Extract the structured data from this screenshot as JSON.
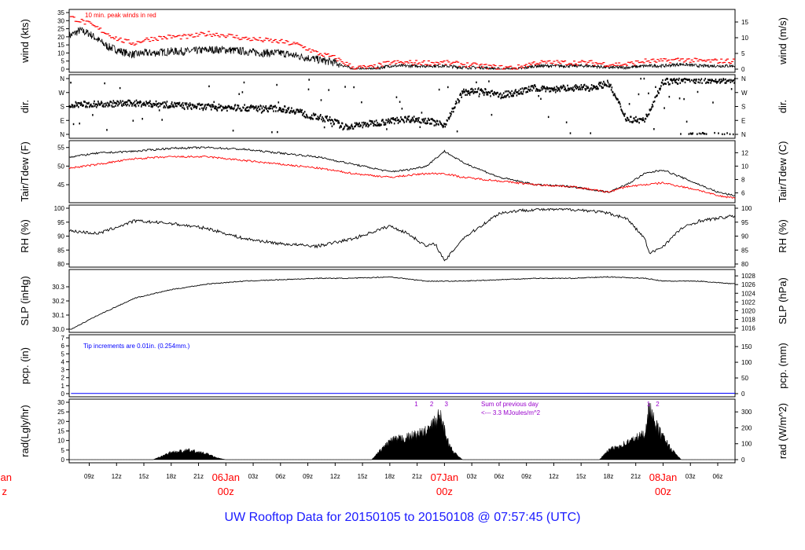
{
  "caption": "UW Rooftop Data for 20150105  to  20150108 @ 07:57:45  (UTC)",
  "colors": {
    "frame": "#000000",
    "red": "#ff0000",
    "blue": "#0000ff",
    "purple": "#9900cc",
    "date_red": "#ff0000",
    "caption": "#1a1aff"
  },
  "x_axis": {
    "ticks": [
      "09z",
      "12z",
      "15z",
      "18z",
      "21z",
      "06Jan",
      "03z",
      "06z",
      "09z",
      "12z",
      "15z",
      "18z",
      "21z",
      "07Jan",
      "03z",
      "06z",
      "09z",
      "12z",
      "15z",
      "18z",
      "21z",
      "08Jan",
      "03z",
      "06z"
    ],
    "tick_hours": [
      9,
      12,
      15,
      18,
      21,
      24,
      27,
      30,
      33,
      36,
      39,
      42,
      45,
      48,
      51,
      54,
      57,
      60,
      63,
      66,
      69,
      72,
      75,
      78
    ],
    "date_labels": [
      {
        "day": "06Jan",
        "hour": "00z",
        "at_hour": 24
      },
      {
        "day": "07Jan",
        "hour": "00z",
        "at_hour": 48
      },
      {
        "day": "08Jan",
        "hour": "00z",
        "at_hour": 72
      }
    ],
    "left_partial": {
      "day": "Jan",
      "hour": "z"
    },
    "range_hours": [
      6.8,
      79.9
    ]
  },
  "panels": [
    {
      "id": "wind",
      "left_label": "wind (kts)",
      "right_label": "wind (m/s)",
      "left_ticks": [
        "0",
        "5",
        "10",
        "15",
        "20",
        "25",
        "30",
        "35"
      ],
      "left_range": [
        0,
        35
      ],
      "right_ticks": [
        "0",
        "5",
        "10",
        "15"
      ],
      "right_factor": 0.5144,
      "annotation": "10 min. peak winds in red"
    },
    {
      "id": "dir",
      "left_label": "dir.",
      "right_label": "dir.",
      "left_ticks": [
        "N",
        "E",
        "S",
        "W",
        "N"
      ],
      "right_ticks": [
        "N",
        "E",
        "S",
        "W",
        "N"
      ],
      "left_range": [
        0,
        360
      ]
    },
    {
      "id": "temp",
      "left_label": "Tair/Tdew (F)",
      "right_label": "Tair/Tdew (C)",
      "left_ticks": [
        "45",
        "50",
        "55"
      ],
      "left_range": [
        41,
        56
      ],
      "right_ticks": [
        "6",
        "8",
        "10",
        "12"
      ]
    },
    {
      "id": "rh",
      "left_label": "RH (%)",
      "right_label": "RH (%)",
      "left_ticks": [
        "80",
        "85",
        "90",
        "95",
        "100"
      ],
      "left_range": [
        78,
        100
      ],
      "right_ticks": [
        "80",
        "85",
        "90",
        "95",
        "100"
      ]
    },
    {
      "id": "slp",
      "left_label": "SLP (inHg)",
      "right_label": "SLP (hPa)",
      "left_ticks": [
        "30.0",
        "30.1",
        "30.2",
        "30.3"
      ],
      "left_range": [
        30.0,
        30.4
      ],
      "right_ticks": [
        "1016",
        "1018",
        "1020",
        "1022",
        "1024",
        "1026",
        "1028"
      ]
    },
    {
      "id": "pcp",
      "left_label": "pcp. (in)",
      "right_label": "pcp. (mm)",
      "left_ticks": [
        "0",
        "1",
        "2",
        "3",
        "4",
        "5",
        "6",
        "7"
      ],
      "left_range": [
        0,
        7
      ],
      "right_ticks": [
        "0",
        "50",
        "100",
        "150"
      ],
      "annotation": "Tip increments are 0.01in. (0.254mm.)"
    },
    {
      "id": "rad",
      "left_label": "rad(Lgly/hr)",
      "right_label": "rad (W/m^2)",
      "left_ticks": [
        "0",
        "5",
        "10",
        "15",
        "20",
        "25",
        "30"
      ],
      "left_range": [
        0,
        31
      ],
      "right_ticks": [
        "0",
        "100",
        "200",
        "300"
      ],
      "annotation_lines": [
        "Sum of previous day",
        "<--- 3.3 MJoules/m^2"
      ],
      "marks": [
        {
          "label": "1",
          "at_hour": 44.9
        },
        {
          "label": "2",
          "at_hour": 46.6
        },
        {
          "label": "3",
          "at_hour": 48.2
        },
        {
          "label": "1",
          "at_hour": 70.4
        },
        {
          "label": "2",
          "at_hour": 71.4
        }
      ]
    }
  ],
  "chart_data": {
    "type": "line",
    "x_unit": "hours since 2015-01-05 00z",
    "series": [
      {
        "name": "wind",
        "panel": "wind",
        "x": [
          7,
          8,
          9,
          10,
          11,
          12,
          13,
          14,
          15,
          16,
          18,
          20,
          22,
          24,
          26,
          28,
          30,
          32,
          34,
          36,
          37,
          38,
          40,
          42,
          44,
          46,
          48,
          50,
          52,
          54,
          56,
          58,
          60,
          62,
          64,
          66,
          68,
          70,
          72,
          74,
          76,
          78,
          79.9
        ],
        "values": [
          21,
          24,
          22,
          18,
          14,
          12,
          10,
          9,
          10,
          10,
          11,
          11,
          12,
          12,
          11,
          10,
          10,
          8,
          6,
          4,
          2,
          0,
          0,
          2,
          2,
          2,
          2,
          1,
          1,
          0,
          0,
          2,
          2,
          2,
          2,
          1,
          1,
          2,
          2,
          3,
          2,
          2,
          2
        ]
      },
      {
        "name": "10 min. peak winds",
        "panel": "wind",
        "x": [
          7,
          8,
          9,
          10,
          11,
          12,
          13,
          14,
          15,
          16,
          18,
          20,
          22,
          24,
          26,
          28,
          30,
          32,
          34,
          36,
          37,
          38,
          40,
          42,
          44,
          46,
          48,
          50,
          52,
          54,
          56,
          58,
          60,
          62,
          64,
          66,
          68,
          70,
          72,
          74,
          76,
          78,
          79.9
        ],
        "values": [
          32,
          30,
          28,
          25,
          22,
          19,
          17,
          16,
          18,
          19,
          20,
          20,
          22,
          21,
          19,
          18,
          17,
          15,
          10,
          7,
          4,
          1,
          1,
          4,
          4,
          4,
          4,
          3,
          2,
          1,
          1,
          4,
          4,
          4,
          4,
          3,
          3,
          5,
          5,
          6,
          5,
          5,
          5
        ]
      },
      {
        "name": "dir",
        "panel": "dir",
        "x": [
          7,
          10,
          14,
          18,
          22,
          26,
          30,
          32,
          33,
          35,
          36,
          37,
          40,
          44,
          46,
          48,
          50,
          52,
          54,
          56,
          58,
          60,
          62,
          64,
          66,
          68,
          70,
          72,
          74,
          76,
          79.9
        ],
        "values": [
          190,
          195,
          200,
          190,
          175,
          170,
          165,
          150,
          120,
          100,
          80,
          45,
          70,
          100,
          90,
          60,
          270,
          280,
          250,
          270,
          300,
          290,
          300,
          300,
          330,
          100,
          90,
          340,
          345,
          350,
          350
        ]
      },
      {
        "name": "Tair",
        "panel": "temp",
        "x": [
          7,
          10,
          14,
          18,
          22,
          26,
          30,
          34,
          38,
          42,
          44,
          46,
          47,
          48,
          50,
          54,
          58,
          62,
          66,
          68,
          70,
          72,
          74,
          76,
          78,
          79.9
        ],
        "values": [
          52.5,
          53.5,
          54,
          54.8,
          55,
          54.5,
          53.5,
          52.5,
          50.5,
          48.5,
          49,
          50,
          52,
          54,
          51,
          47,
          45,
          44.5,
          43,
          45,
          48,
          49,
          47,
          45,
          43,
          42
        ]
      },
      {
        "name": "Tdew",
        "panel": "temp",
        "x": [
          7,
          10,
          14,
          18,
          22,
          26,
          30,
          34,
          38,
          42,
          44,
          46,
          48,
          50,
          54,
          58,
          62,
          66,
          68,
          70,
          72,
          74,
          76,
          78,
          79.9
        ],
        "values": [
          49.5,
          50.5,
          52,
          52.5,
          52.5,
          51.5,
          50.5,
          49.5,
          48,
          47,
          47.5,
          48,
          48,
          47,
          46,
          45,
          44.5,
          43,
          44.5,
          45,
          45.5,
          44.5,
          43.5,
          42,
          41.5
        ]
      },
      {
        "name": "RH",
        "panel": "rh",
        "x": [
          7,
          10,
          14,
          18,
          22,
          26,
          30,
          34,
          38,
          42,
          44,
          46,
          47,
          48,
          50,
          52,
          54,
          56,
          58,
          60,
          62,
          64,
          66,
          68,
          70,
          70.5,
          72,
          74,
          76,
          78,
          79.9
        ],
        "values": [
          91,
          90,
          95,
          94,
          92,
          88,
          86,
          85,
          88,
          93,
          90,
          85,
          86,
          79,
          88,
          93,
          98,
          99,
          99.5,
          99.5,
          99.5,
          99,
          98,
          96,
          88,
          82,
          85,
          92,
          95,
          96,
          97
        ]
      },
      {
        "name": "SLP",
        "panel": "slp",
        "x": [
          7,
          10,
          14,
          18,
          22,
          26,
          30,
          34,
          38,
          42,
          46,
          50,
          54,
          58,
          62,
          66,
          70,
          72,
          76,
          79.9
        ],
        "values": [
          30.0,
          30.1,
          30.22,
          30.28,
          30.32,
          30.34,
          30.35,
          30.36,
          30.36,
          30.37,
          30.34,
          30.34,
          30.35,
          30.36,
          30.36,
          30.37,
          30.36,
          30.34,
          30.34,
          30.32
        ]
      },
      {
        "name": "pcp",
        "panel": "pcp",
        "x": [
          7,
          79.9
        ],
        "values": [
          0.02,
          0.05
        ]
      },
      {
        "name": "rad",
        "panel": "rad",
        "x": [
          16,
          17,
          18,
          20,
          22,
          23,
          24,
          25,
          40,
          41,
          42,
          44,
          46,
          47,
          47.5,
          48,
          48.5,
          49,
          50,
          65,
          66,
          68,
          70,
          70.5,
          71,
          72,
          73,
          74
        ],
        "values": [
          0,
          2,
          4,
          5,
          3,
          1,
          0,
          0,
          0,
          5,
          10,
          12,
          15,
          20,
          24,
          16,
          8,
          4,
          0,
          0,
          5,
          9,
          14,
          30,
          20,
          12,
          5,
          0
        ]
      }
    ]
  }
}
